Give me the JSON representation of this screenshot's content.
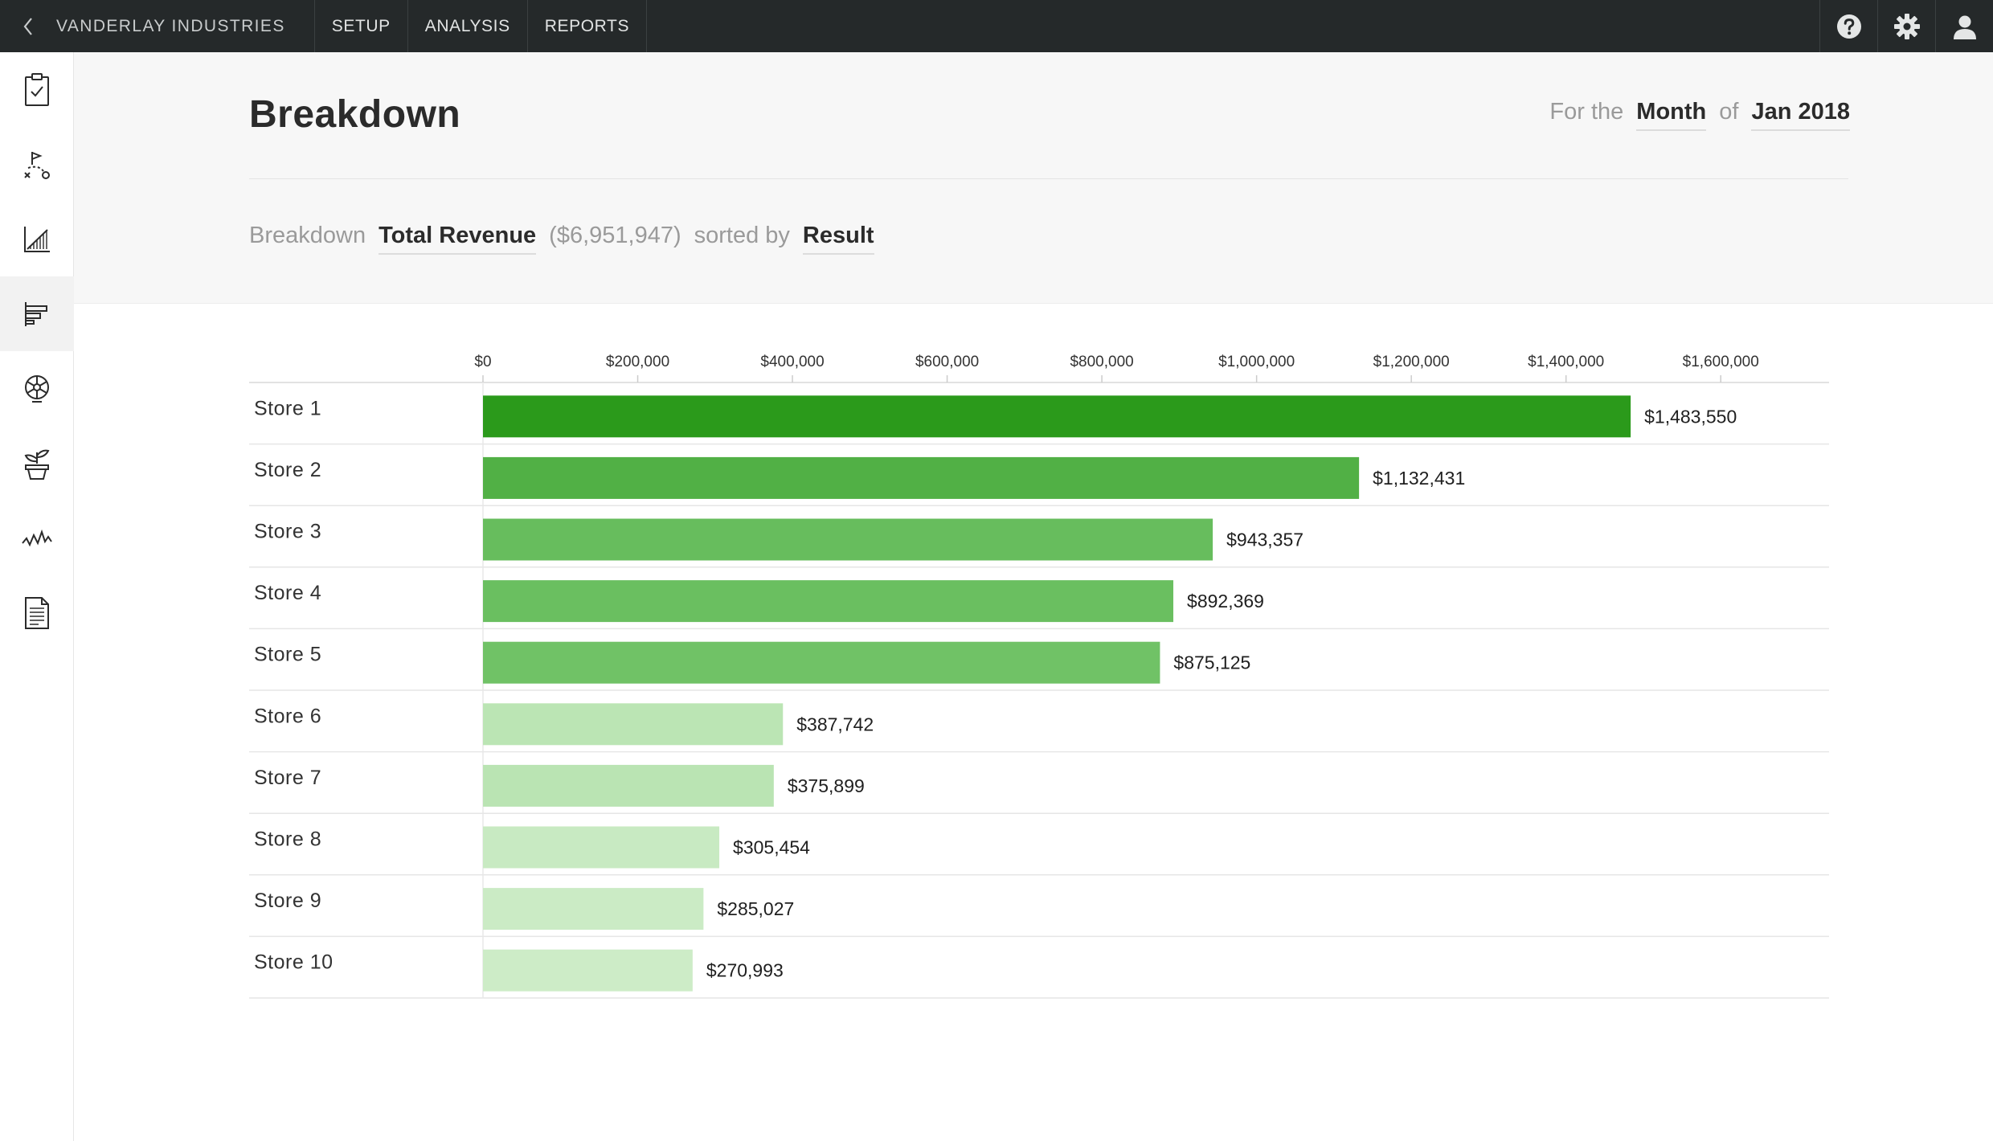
{
  "topbar": {
    "brand": "VANDERLAY INDUSTRIES",
    "nav": [
      {
        "label": "SETUP"
      },
      {
        "label": "ANALYSIS"
      },
      {
        "label": "REPORTS"
      }
    ],
    "icons": [
      "help-icon",
      "gear-icon",
      "user-icon"
    ]
  },
  "sidebar": {
    "items": [
      {
        "icon": "clipboard-check-icon"
      },
      {
        "icon": "strategy-icon"
      },
      {
        "icon": "area-chart-icon"
      },
      {
        "icon": "bar-chart-icon",
        "active": true
      },
      {
        "icon": "aperture-icon"
      },
      {
        "icon": "plant-pot-icon"
      },
      {
        "icon": "activity-line-icon"
      },
      {
        "icon": "document-icon"
      }
    ]
  },
  "header": {
    "title": "Breakdown",
    "period": {
      "prefix": "For the",
      "unit": "Month",
      "connector": "of",
      "date": "Jan 2018"
    },
    "breakdown": {
      "prefix": "Breakdown",
      "metric": "Total Revenue",
      "total": "($6,951,947)",
      "sorted_by": "sorted by",
      "sort": "Result"
    }
  },
  "chart_data": {
    "type": "bar",
    "orientation": "horizontal",
    "title": "",
    "xlabel": "",
    "ylabel": "",
    "xlim": [
      0,
      1740000
    ],
    "ticks": [
      {
        "value": 0,
        "label": "$0"
      },
      {
        "value": 200000,
        "label": "$200,000"
      },
      {
        "value": 400000,
        "label": "$400,000"
      },
      {
        "value": 600000,
        "label": "$600,000"
      },
      {
        "value": 800000,
        "label": "$800,000"
      },
      {
        "value": 1000000,
        "label": "$1,000,000"
      },
      {
        "value": 1200000,
        "label": "$1,200,000"
      },
      {
        "value": 1400000,
        "label": "$1,400,000"
      },
      {
        "value": 1600000,
        "label": "$1,600,000"
      }
    ],
    "categories": [
      "Store 1",
      "Store 2",
      "Store 3",
      "Store 4",
      "Store 5",
      "Store 6",
      "Store 7",
      "Store 8",
      "Store 9",
      "Store 10"
    ],
    "values": [
      1483550,
      1132431,
      943357,
      892369,
      875125,
      387742,
      375899,
      305454,
      285027,
      270993
    ],
    "value_labels": [
      "$1,483,550",
      "$1,132,431",
      "$943,357",
      "$892,369",
      "$875,125",
      "$387,742",
      "$375,899",
      "$305,454",
      "$285,027",
      "$270,993"
    ],
    "colors": [
      "#2b9a1b",
      "#51b045",
      "#67bd5d",
      "#6abf60",
      "#70c266",
      "#bbe5b4",
      "#bae4b3",
      "#c8eac2",
      "#cbebc5",
      "#cdecc7"
    ],
    "grid": false,
    "legend": "none"
  }
}
